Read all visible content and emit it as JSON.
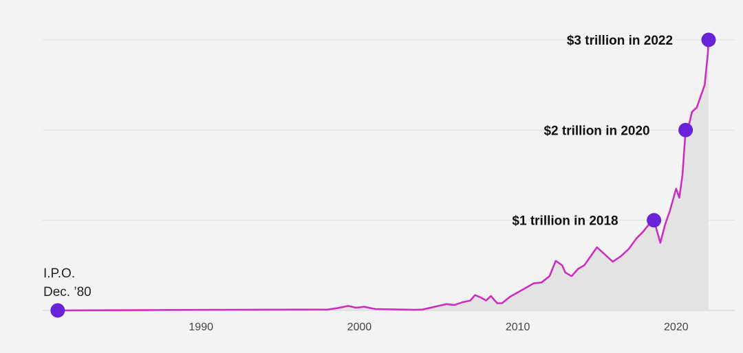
{
  "chart_data": {
    "type": "area",
    "title": "",
    "xlabel": "",
    "ylabel": "",
    "x_ticks": [
      "1990",
      "2000",
      "2010",
      "2020"
    ],
    "xlim": [
      1980.0,
      2023.7
    ],
    "ylim": [
      0,
      3
    ],
    "y_unit": "trillion USD",
    "grid": true,
    "series": [
      {
        "values": [
          [
            1980.95,
            0.0
          ],
          [
            1990.0,
            0.006
          ],
          [
            1998.0,
            0.01
          ],
          [
            1998.6,
            0.025
          ],
          [
            1999.3,
            0.05
          ],
          [
            1999.8,
            0.03
          ],
          [
            2000.3,
            0.04
          ],
          [
            2001.0,
            0.015
          ],
          [
            2003.5,
            0.007
          ],
          [
            2004.0,
            0.01
          ],
          [
            2005.0,
            0.05
          ],
          [
            2005.5,
            0.07
          ],
          [
            2006.0,
            0.06
          ],
          [
            2006.5,
            0.09
          ],
          [
            2007.0,
            0.11
          ],
          [
            2007.3,
            0.17
          ],
          [
            2007.7,
            0.14
          ],
          [
            2008.0,
            0.11
          ],
          [
            2008.3,
            0.16
          ],
          [
            2008.7,
            0.08
          ],
          [
            2009.0,
            0.08
          ],
          [
            2009.5,
            0.15
          ],
          [
            2010.0,
            0.2
          ],
          [
            2010.5,
            0.25
          ],
          [
            2011.0,
            0.3
          ],
          [
            2011.5,
            0.31
          ],
          [
            2012.0,
            0.38
          ],
          [
            2012.4,
            0.55
          ],
          [
            2012.8,
            0.5
          ],
          [
            2013.0,
            0.42
          ],
          [
            2013.4,
            0.38
          ],
          [
            2013.8,
            0.46
          ],
          [
            2014.2,
            0.5
          ],
          [
            2014.6,
            0.6
          ],
          [
            2015.0,
            0.7
          ],
          [
            2015.5,
            0.62
          ],
          [
            2016.0,
            0.54
          ],
          [
            2016.5,
            0.6
          ],
          [
            2017.0,
            0.68
          ],
          [
            2017.5,
            0.8
          ],
          [
            2017.9,
            0.87
          ],
          [
            2018.4,
            0.98
          ],
          [
            2018.6,
            1.0
          ],
          [
            2019.0,
            0.75
          ],
          [
            2019.3,
            0.95
          ],
          [
            2019.6,
            1.1
          ],
          [
            2020.0,
            1.35
          ],
          [
            2020.2,
            1.25
          ],
          [
            2020.4,
            1.5
          ],
          [
            2020.6,
            2.0
          ],
          [
            2020.8,
            2.05
          ],
          [
            2021.0,
            2.2
          ],
          [
            2021.3,
            2.25
          ],
          [
            2021.5,
            2.35
          ],
          [
            2021.8,
            2.5
          ],
          [
            2022.0,
            2.85
          ],
          [
            2022.05,
            3.0
          ]
        ]
      }
    ],
    "milestones": [
      {
        "label": "I.P.O.",
        "label2": "Dec. ’80",
        "x": 1980.95,
        "y": 0
      },
      {
        "label": "$1 trillion in 2018",
        "x": 2018.6,
        "y": 1
      },
      {
        "label": "$2 trillion in 2020",
        "x": 2020.6,
        "y": 2
      },
      {
        "label": "$3 trillion in 2022",
        "x": 2022.05,
        "y": 3
      }
    ],
    "colors": {
      "line": "#cc2fbf",
      "marker": "#6a22d8",
      "area": "#e3e3e3",
      "background": "#f3f3f3"
    }
  }
}
